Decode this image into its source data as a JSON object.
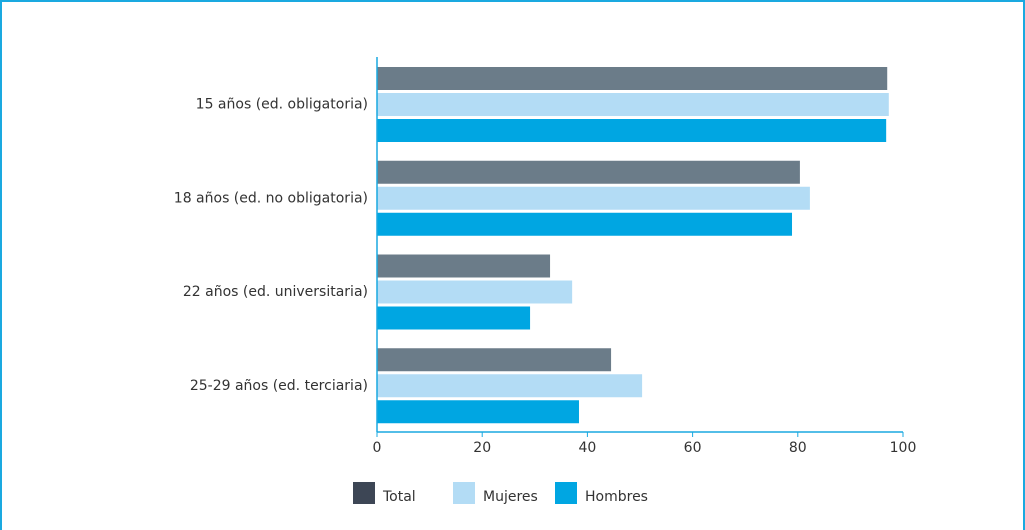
{
  "chart_data": {
    "type": "bar",
    "orientation": "horizontal",
    "categories": [
      "15 años (ed. obligatoria)",
      "18 años (ed. no obligatoria)",
      "22 años (ed. universitaria)",
      "25-29 años (ed. terciaria)"
    ],
    "series": [
      {
        "name": "Total",
        "color": "#6b7c89",
        "values": [
          97.0,
          80.4,
          32.9,
          44.5
        ]
      },
      {
        "name": "Mujeres",
        "color": "#b3dcf5",
        "values": [
          97.3,
          82.3,
          37.1,
          50.4
        ]
      },
      {
        "name": "Hombres",
        "color": "#00a6e2",
        "values": [
          96.8,
          78.9,
          29.1,
          38.4
        ]
      }
    ],
    "xlim": [
      0,
      100
    ],
    "xticks": [
      0,
      20,
      40,
      60,
      80,
      100
    ],
    "grid": false,
    "legend": "bottom"
  }
}
